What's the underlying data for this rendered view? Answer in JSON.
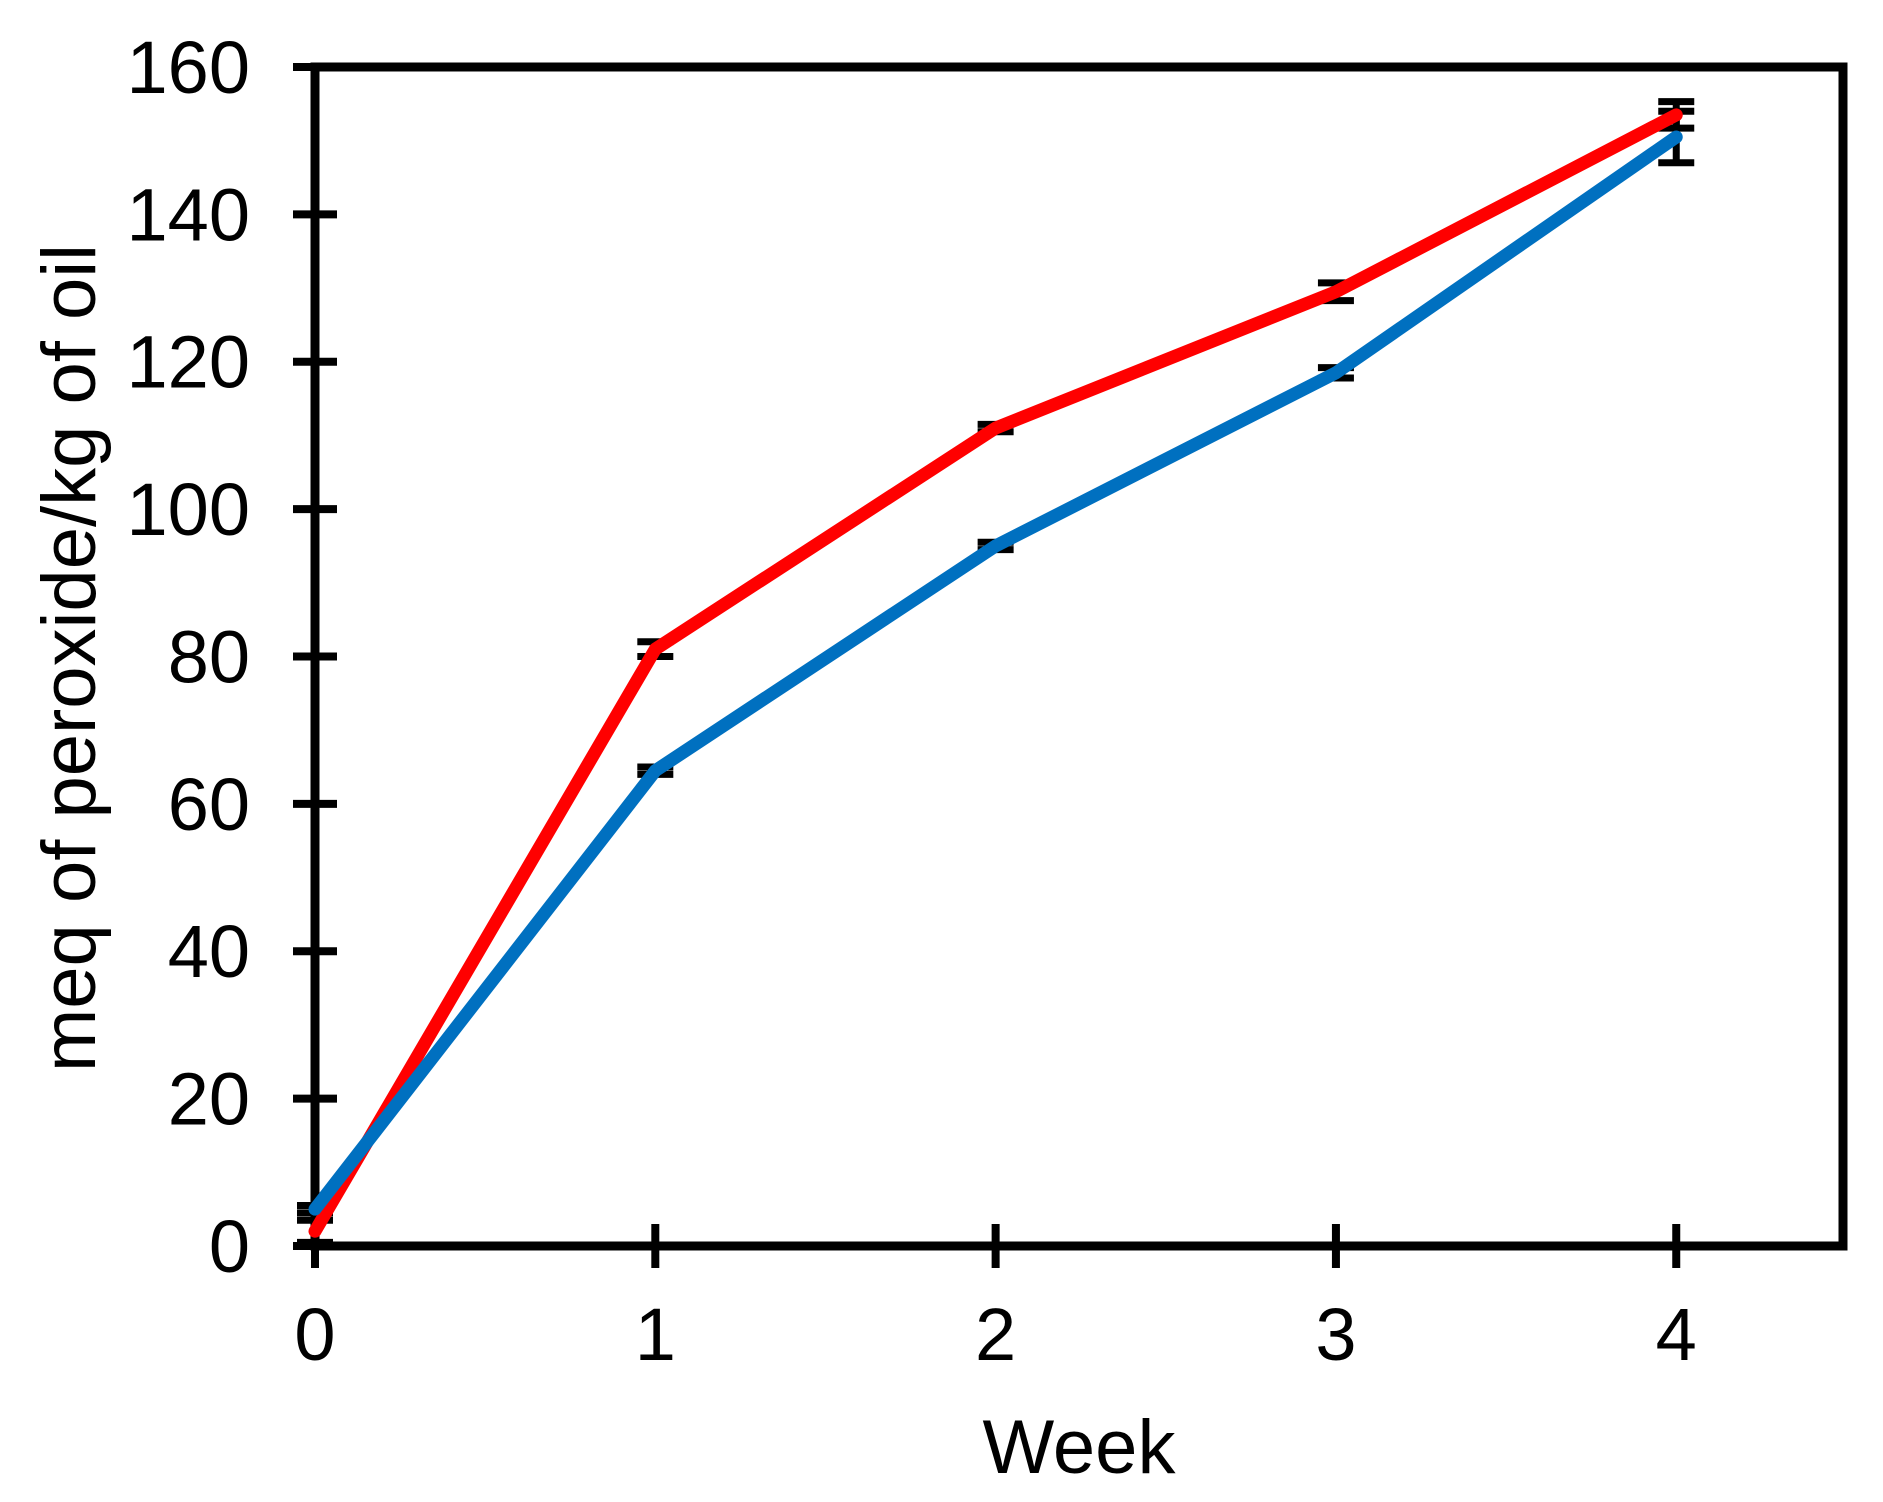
{
  "chart_data": {
    "type": "line",
    "title": "",
    "xlabel": "Week",
    "ylabel": "meq of peroxide/kg of oil",
    "xlim": [
      0,
      4.49
    ],
    "ylim": [
      0,
      160
    ],
    "xticks": [
      0,
      1,
      2,
      3,
      4
    ],
    "yticks": [
      0,
      20,
      40,
      60,
      80,
      100,
      120,
      140,
      160
    ],
    "grid": false,
    "legend": "none",
    "frame": "full-box",
    "x": [
      0,
      1,
      2,
      3,
      4
    ],
    "series": [
      {
        "name": "red",
        "color": "#FF0000",
        "values": [
          2,
          81,
          111,
          129.5,
          153.5
        ],
        "error_bars": [
          1.5,
          1,
          0.5,
          1.2,
          1.8
        ]
      },
      {
        "name": "blue",
        "color": "#0070C0",
        "values": [
          5,
          64.5,
          95,
          118.5,
          150.5
        ],
        "error_bars": [
          0.5,
          0.5,
          0.5,
          0.7,
          3.5
        ]
      }
    ],
    "error_bar_color": "#000000",
    "axis_color": "#000000"
  }
}
